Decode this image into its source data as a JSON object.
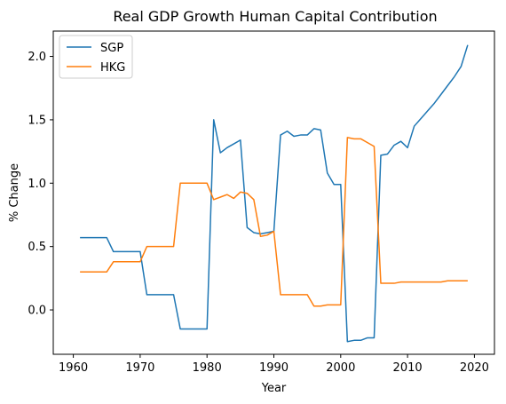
{
  "chart_data": {
    "type": "line",
    "title": "Real GDP Growth Human Capital Contribution",
    "xlabel": "Year",
    "ylabel": "% Change",
    "xlim": [
      1957,
      2023
    ],
    "ylim": [
      -0.35,
      2.2
    ],
    "xticks": [
      1960,
      1970,
      1980,
      1990,
      2000,
      2010,
      2020
    ],
    "yticks": [
      0.0,
      0.5,
      1.0,
      1.5,
      2.0
    ],
    "ytick_labels": [
      "0.0",
      "0.5",
      "1.0",
      "1.5",
      "2.0"
    ],
    "grid": false,
    "legend_position": "top-left",
    "series": [
      {
        "name": "SGP",
        "color": "#1f77b4",
        "x": [
          1961,
          1962,
          1963,
          1964,
          1965,
          1966,
          1967,
          1968,
          1969,
          1970,
          1971,
          1972,
          1973,
          1974,
          1975,
          1976,
          1977,
          1978,
          1979,
          1980,
          1981,
          1982,
          1983,
          1984,
          1985,
          1986,
          1987,
          1988,
          1989,
          1990,
          1991,
          1992,
          1993,
          1994,
          1995,
          1996,
          1997,
          1998,
          1999,
          2000,
          2001,
          2002,
          2003,
          2004,
          2005,
          2006,
          2007,
          2008,
          2009,
          2010,
          2011,
          2012,
          2013,
          2014,
          2015,
          2016,
          2017,
          2018,
          2019
        ],
        "y": [
          0.57,
          0.57,
          0.57,
          0.57,
          0.57,
          0.46,
          0.46,
          0.46,
          0.46,
          0.46,
          0.12,
          0.12,
          0.12,
          0.12,
          0.12,
          -0.15,
          -0.15,
          -0.15,
          -0.15,
          -0.15,
          1.5,
          1.24,
          1.28,
          1.31,
          1.34,
          0.65,
          0.61,
          0.6,
          0.61,
          0.62,
          1.38,
          1.41,
          1.37,
          1.38,
          1.38,
          1.43,
          1.42,
          1.08,
          0.99,
          0.99,
          -0.25,
          -0.24,
          -0.24,
          -0.22,
          -0.22,
          1.22,
          1.23,
          1.3,
          1.33,
          1.28,
          1.45,
          1.51,
          1.57,
          1.63,
          1.7,
          1.77,
          1.84,
          1.92,
          2.09
        ]
      },
      {
        "name": "HKG",
        "color": "#ff7f0e",
        "x": [
          1961,
          1962,
          1963,
          1964,
          1965,
          1966,
          1967,
          1968,
          1969,
          1970,
          1971,
          1972,
          1973,
          1974,
          1975,
          1976,
          1977,
          1978,
          1979,
          1980,
          1981,
          1982,
          1983,
          1984,
          1985,
          1986,
          1987,
          1988,
          1989,
          1990,
          1991,
          1992,
          1993,
          1994,
          1995,
          1996,
          1997,
          1998,
          1999,
          2000,
          2001,
          2002,
          2003,
          2004,
          2005,
          2006,
          2007,
          2008,
          2009,
          2010,
          2011,
          2012,
          2013,
          2014,
          2015,
          2016,
          2017,
          2018,
          2019
        ],
        "y": [
          0.3,
          0.3,
          0.3,
          0.3,
          0.3,
          0.38,
          0.38,
          0.38,
          0.38,
          0.38,
          0.5,
          0.5,
          0.5,
          0.5,
          0.5,
          1.0,
          1.0,
          1.0,
          1.0,
          1.0,
          0.87,
          0.89,
          0.91,
          0.88,
          0.93,
          0.92,
          0.87,
          0.58,
          0.59,
          0.62,
          0.12,
          0.12,
          0.12,
          0.12,
          0.12,
          0.03,
          0.03,
          0.04,
          0.04,
          0.04,
          1.36,
          1.35,
          1.35,
          1.32,
          1.29,
          0.21,
          0.21,
          0.21,
          0.22,
          0.22,
          0.22,
          0.22,
          0.22,
          0.22,
          0.22,
          0.23,
          0.23,
          0.23,
          0.23
        ]
      }
    ]
  }
}
